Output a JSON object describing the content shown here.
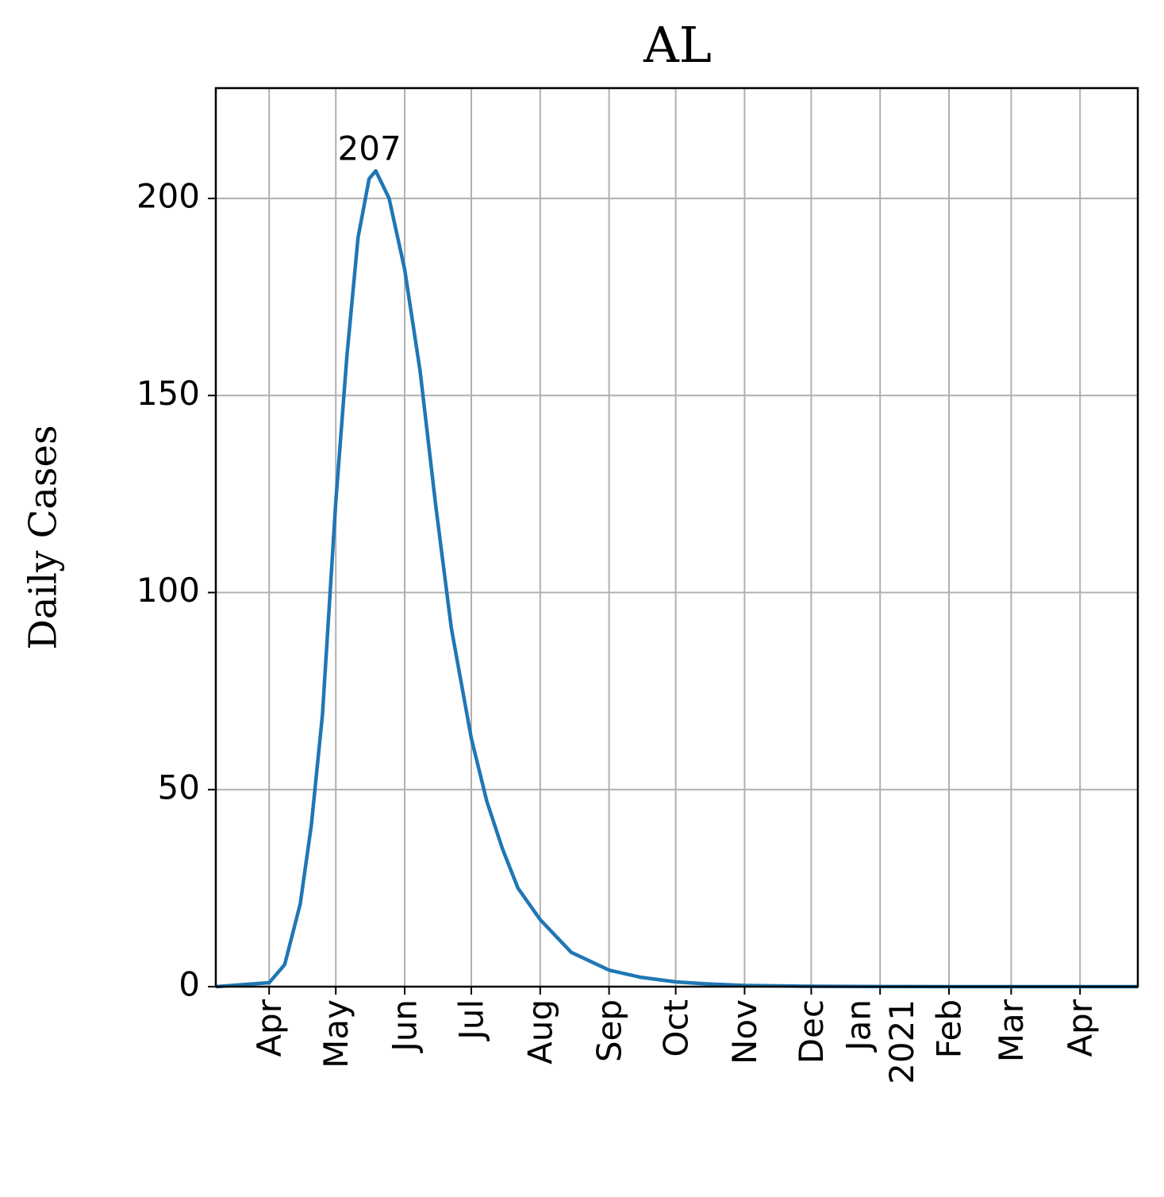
{
  "chart_data": {
    "type": "line",
    "title": "AL",
    "y_label": "Daily Cases",
    "x": [
      "2020-03-08",
      "2020-04-01",
      "2020-04-08",
      "2020-04-15",
      "2020-04-20",
      "2020-04-25",
      "2020-05-01",
      "2020-05-06",
      "2020-05-11",
      "2020-05-16",
      "2020-05-19",
      "2020-05-25",
      "2020-06-01",
      "2020-06-08",
      "2020-06-15",
      "2020-06-22",
      "2020-07-01",
      "2020-07-08",
      "2020-07-15",
      "2020-07-22",
      "2020-08-01",
      "2020-08-15",
      "2020-09-01",
      "2020-09-15",
      "2020-10-01",
      "2020-10-15",
      "2020-11-01",
      "2020-12-01",
      "2021-01-01",
      "2021-02-01",
      "2021-03-01",
      "2021-04-01",
      "2021-04-27"
    ],
    "series": [
      {
        "name": "Daily Cases",
        "color": "#1f77b4",
        "values": [
          0,
          1,
          5.6,
          21,
          41,
          69,
          123,
          160,
          190,
          205,
          207,
          200,
          182,
          156,
          122,
          91,
          63,
          47,
          35,
          25,
          17,
          8.7,
          4.2,
          2.4,
          1.2,
          0.7,
          0.3,
          0.1,
          0.03,
          0,
          0,
          0,
          0
        ]
      }
    ],
    "peak": {
      "x": "2020-05-19",
      "value": 207
    },
    "xlim": [
      "2020-03-08",
      "2021-04-27"
    ],
    "xticks": [
      {
        "value": "2020-04-01",
        "label": "Apr"
      },
      {
        "value": "2020-05-01",
        "label": "May"
      },
      {
        "value": "2020-06-01",
        "label": "Jun"
      },
      {
        "value": "2020-07-01",
        "label": "Jul"
      },
      {
        "value": "2020-08-01",
        "label": "Aug"
      },
      {
        "value": "2020-09-01",
        "label": "Sep"
      },
      {
        "value": "2020-10-01",
        "label": "Oct"
      },
      {
        "value": "2020-11-01",
        "label": "Nov"
      },
      {
        "value": "2020-12-01",
        "label": "Dec"
      },
      {
        "value": "2021-01-01",
        "label": "Jan\n2021"
      },
      {
        "value": "2021-02-01",
        "label": "Feb"
      },
      {
        "value": "2021-03-01",
        "label": "Mar"
      },
      {
        "value": "2021-04-01",
        "label": "Apr"
      }
    ],
    "ylim": [
      0,
      228
    ],
    "yticks": [
      0,
      50,
      100,
      150,
      200
    ],
    "grid": true
  }
}
